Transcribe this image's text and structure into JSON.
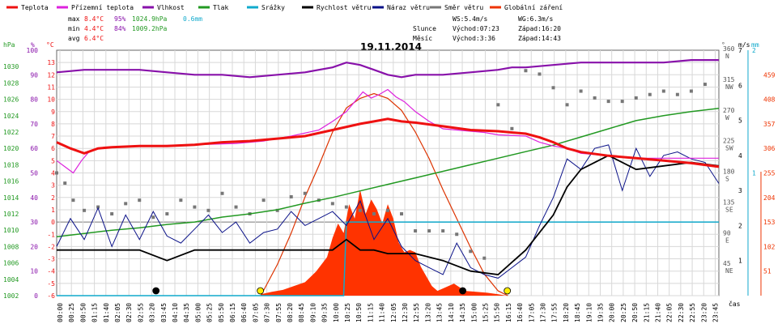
{
  "chart_data": {
    "type": "line",
    "title": "19.11.2014",
    "legend": [
      {
        "name": "Teplota",
        "color": "#ee1111"
      },
      {
        "name": "Přízemní teplota",
        "color": "#dd22dd"
      },
      {
        "name": "Vlhkost",
        "color": "#8811aa"
      },
      {
        "name": "Tlak",
        "color": "#229922"
      },
      {
        "name": "Srážky",
        "color": "#11aacc"
      },
      {
        "name": "Rychlost větru",
        "color": "#000000"
      },
      {
        "name": "Náraz větru",
        "color": "#0a1188"
      },
      {
        "name": "Směr větru",
        "color": "#777777"
      },
      {
        "name": "Globální záření",
        "color": "#ee3300"
      }
    ],
    "stats": {
      "max_label": "max",
      "min_label": "min",
      "avg_label": "avg",
      "max": {
        "temp": "8.4°C",
        "hum": "95%",
        "press": "1024.9hPa",
        "rain": "0.6mm"
      },
      "min": {
        "temp": "4.4°C",
        "hum": "84%",
        "press": "1009.2hPa"
      },
      "avg": {
        "temp": "6.4°C"
      }
    },
    "wind_info": {
      "ws": "WS:5.4m/s",
      "wg": "WG:6.3m/s"
    },
    "sun_info": {
      "slunce": "Slunce",
      "mesic": "Měsíc",
      "sun_rise": "Východ:07:23",
      "sun_set": "Západ:16:20",
      "moon_rise": "Východ:3:36",
      "moon_set": "Západ:14:43"
    },
    "axes": {
      "hpa": {
        "unit": "hPa",
        "range": [
          1002,
          1032
        ],
        "ticks": [
          "1002",
          "1004",
          "1006",
          "1008",
          "1010",
          "1012",
          "1014",
          "1016",
          "1018",
          "1020",
          "1022",
          "1024",
          "1026",
          "1028",
          "1030"
        ]
      },
      "pct": {
        "unit": "%",
        "range": [
          0,
          100
        ],
        "ticks": [
          "0",
          "10",
          "20",
          "30",
          "40",
          "50",
          "60",
          "70",
          "80",
          "90",
          "100"
        ]
      },
      "temp": {
        "unit": "°C",
        "range": [
          -6,
          14
        ],
        "ticks": [
          "-6",
          "-5",
          "-4",
          "-3",
          "-2",
          "-1",
          "0",
          "1",
          "2",
          "3",
          "4",
          "5",
          "6",
          "7",
          "8",
          "9",
          "10",
          "11",
          "12",
          "13"
        ]
      },
      "dir": {
        "unit": "°",
        "ticks": [
          {
            "value": 45,
            "deg": "45",
            "name": "NE"
          },
          {
            "value": 90,
            "deg": "90",
            "name": "E"
          },
          {
            "value": 135,
            "deg": "135",
            "name": "SE"
          },
          {
            "value": 180,
            "deg": "180",
            "name": "S"
          },
          {
            "value": 225,
            "deg": "225",
            "name": "SW"
          },
          {
            "value": 270,
            "deg": "270",
            "name": "W"
          },
          {
            "value": 315,
            "deg": "315",
            "name": "NW"
          },
          {
            "value": 360,
            "deg": "360",
            "name": "N"
          }
        ]
      },
      "ms": {
        "unit": "m/s",
        "range": [
          0,
          7
        ],
        "ticks": [
          "1",
          "2",
          "3",
          "4",
          "5",
          "6",
          "7"
        ]
      },
      "mm": {
        "unit": "mm",
        "range": [
          0,
          2
        ],
        "ticks": [
          "1",
          "2"
        ]
      },
      "wm2": {
        "unit": "W/m²",
        "range": [
          0,
          510
        ],
        "ticks": [
          "51",
          "102",
          "153",
          "204",
          "255",
          "306",
          "357",
          "408",
          "459"
        ]
      },
      "time_label": "čas"
    },
    "x_ticks": [
      "00:00",
      "00:25",
      "00:50",
      "01:15",
      "01:40",
      "02:05",
      "02:30",
      "02:55",
      "03:20",
      "03:45",
      "04:10",
      "04:35",
      "05:00",
      "05:25",
      "05:50",
      "06:15",
      "06:40",
      "07:05",
      "07:30",
      "07:55",
      "08:20",
      "08:45",
      "09:10",
      "09:35",
      "10:00",
      "10:25",
      "10:50",
      "11:15",
      "11:40",
      "12:05",
      "12:30",
      "12:55",
      "13:20",
      "13:45",
      "14:10",
      "14:35",
      "15:00",
      "15:25",
      "15:50",
      "16:15",
      "16:40",
      "17:05",
      "17:30",
      "17:55",
      "18:20",
      "18:45",
      "19:10",
      "19:35",
      "20:00",
      "20:25",
      "20:50",
      "21:15",
      "21:40",
      "22:05",
      "22:30",
      "22:55",
      "23:20",
      "23:45"
    ],
    "series": {
      "temperature": {
        "x": [
          0,
          0.5,
          1,
          1.5,
          2,
          3,
          4,
          5,
          6,
          7,
          8,
          9,
          10,
          11,
          11.5,
          12,
          12.5,
          13,
          14,
          15,
          16,
          17,
          17.5,
          18,
          18.5,
          19,
          20,
          21,
          22,
          23,
          24
        ],
        "y": [
          6.5,
          6.0,
          5.6,
          6.0,
          6.1,
          6.2,
          6.2,
          6.3,
          6.5,
          6.6,
          6.8,
          7.0,
          7.5,
          8.0,
          8.2,
          8.4,
          8.2,
          8.1,
          7.8,
          7.5,
          7.4,
          7.2,
          6.9,
          6.5,
          6.0,
          5.7,
          5.4,
          5.2,
          5.0,
          4.8,
          4.5
        ]
      },
      "ground_temperature": {
        "x": [
          0,
          0.3,
          0.6,
          0.9,
          1.2,
          1.5,
          3,
          5,
          6.5,
          7.5,
          8.5,
          9.5,
          10,
          10.5,
          10.8,
          11.1,
          11.4,
          11.7,
          12,
          12.3,
          12.6,
          13,
          13.5,
          14,
          15,
          15.5,
          16,
          17,
          17.5,
          18,
          18.5,
          19,
          20,
          21,
          22,
          23,
          24
        ],
        "y": [
          5.0,
          4.5,
          4.0,
          5.0,
          5.8,
          6.0,
          6.2,
          6.3,
          6.4,
          6.6,
          7.0,
          7.5,
          8.2,
          9.0,
          9.8,
          10.6,
          10.1,
          10.4,
          10.8,
          10.2,
          9.8,
          9.0,
          8.2,
          7.6,
          7.4,
          7.3,
          7.1,
          7.0,
          6.5,
          6.2,
          6.0,
          5.6,
          5.4,
          5.2,
          5.2,
          5.2,
          5.2
        ]
      },
      "humidity": {
        "x": [
          0,
          1,
          2,
          3,
          4,
          5,
          6,
          7,
          8,
          9,
          10,
          10.5,
          11,
          11.5,
          12,
          12.5,
          13,
          14,
          15,
          16,
          16.5,
          17,
          18,
          19,
          20,
          21,
          22,
          23,
          24
        ],
        "y": [
          91,
          92,
          92,
          92,
          91,
          90,
          90,
          89,
          90,
          91,
          93,
          95,
          94,
          92,
          90,
          89,
          90,
          90,
          91,
          92,
          93,
          93,
          94,
          95,
          95,
          95,
          95,
          96,
          96
        ]
      },
      "pressure": {
        "x": [
          0,
          1,
          2,
          3,
          4,
          5,
          6,
          7,
          8,
          9,
          10,
          11,
          12,
          13,
          14,
          15,
          16,
          17,
          18,
          19,
          20,
          21,
          22,
          23,
          24
        ],
        "y": [
          1009.2,
          1009.6,
          1010.0,
          1010.3,
          1010.7,
          1011.0,
          1011.6,
          1012.0,
          1012.5,
          1013.3,
          1014.0,
          1014.8,
          1015.6,
          1016.4,
          1017.2,
          1018.0,
          1018.8,
          1019.6,
          1020.4,
          1021.4,
          1022.4,
          1023.4,
          1024.0,
          1024.5,
          1024.9
        ]
      },
      "rain": {
        "x": [
          0,
          10.4,
          10.5,
          20.4,
          20.5,
          24
        ],
        "y": [
          0,
          0,
          0.6,
          0.6,
          0.6,
          0.6
        ]
      },
      "wind_speed": {
        "x": [
          0,
          1,
          2,
          3,
          4,
          5,
          6,
          7,
          8,
          9,
          10,
          10.5,
          11,
          11.5,
          12,
          13,
          14,
          15,
          16,
          17,
          17.5,
          18,
          18.5,
          19,
          20,
          21,
          22,
          23,
          24
        ],
        "y": [
          1.3,
          1.3,
          1.3,
          1.3,
          1.0,
          1.3,
          1.3,
          1.3,
          1.3,
          1.3,
          1.3,
          1.6,
          1.3,
          1.3,
          1.2,
          1.2,
          1.0,
          0.7,
          0.6,
          1.3,
          1.8,
          2.3,
          3.1,
          3.6,
          4.0,
          3.6,
          3.7,
          3.8,
          3.7
        ]
      },
      "wind_gust": {
        "x": [
          0,
          0.5,
          1,
          1.5,
          2,
          2.5,
          3,
          3.5,
          4,
          4.5,
          5,
          5.5,
          6,
          6.5,
          7,
          7.5,
          8,
          8.5,
          9,
          9.5,
          10,
          10.5,
          11,
          11.5,
          12,
          12.5,
          13,
          13.5,
          14,
          14.5,
          15,
          15.5,
          16,
          16.5,
          17,
          17.5,
          18,
          18.5,
          19,
          19.5,
          20,
          20.5,
          21,
          21.5,
          22,
          22.5,
          23,
          23.5,
          24
        ],
        "y": [
          1.4,
          2.2,
          1.6,
          2.5,
          1.4,
          2.3,
          1.6,
          2.4,
          1.7,
          1.5,
          1.9,
          2.3,
          1.8,
          2.1,
          1.5,
          1.8,
          1.9,
          2.4,
          2.0,
          2.2,
          2.4,
          2.0,
          2.7,
          1.6,
          2.2,
          1.4,
          1.0,
          0.8,
          0.6,
          1.5,
          0.8,
          0.6,
          0.5,
          0.8,
          1.1,
          2.0,
          2.8,
          3.9,
          3.6,
          4.2,
          4.3,
          3.0,
          4.2,
          3.4,
          4.0,
          4.1,
          3.9,
          3.8,
          3.2
        ]
      },
      "wind_direction": {
        "x": [
          0,
          0.3,
          0.6,
          1,
          1.5,
          2,
          2.5,
          3,
          3.5,
          4,
          4.5,
          5,
          5.5,
          6,
          6.5,
          7,
          7.5,
          8,
          8.5,
          9,
          9.5,
          10,
          10.5,
          11,
          11.5,
          12,
          12.5,
          13,
          13.5,
          14,
          14.5,
          15,
          15.5,
          16,
          16.5,
          17,
          17.5,
          18,
          18.5,
          19,
          19.5,
          20,
          20.5,
          21,
          21.5,
          22,
          22.5,
          23,
          23.5
        ],
        "y": [
          180,
          165,
          140,
          125,
          130,
          120,
          135,
          140,
          115,
          120,
          140,
          130,
          125,
          150,
          130,
          120,
          140,
          125,
          145,
          150,
          140,
          135,
          130,
          125,
          120,
          125,
          120,
          95,
          95,
          95,
          90,
          65,
          55,
          280,
          245,
          330,
          325,
          305,
          280,
          300,
          290,
          285,
          285,
          290,
          295,
          300,
          295,
          300,
          310
        ]
      },
      "solar_radiation": {
        "x": [
          7.4,
          7.8,
          8.2,
          8.6,
          9.0,
          9.4,
          9.8,
          10.0,
          10.2,
          10.4,
          10.6,
          10.8,
          11.0,
          11.2,
          11.4,
          11.6,
          11.8,
          12.0,
          12.2,
          12.4,
          12.6,
          12.8,
          13.0,
          13.2,
          13.4,
          13.6,
          13.8,
          14.0,
          14.4,
          14.8,
          15.2,
          15.6,
          16.0,
          16.3
        ],
        "y": [
          3,
          8,
          12,
          20,
          28,
          50,
          80,
          120,
          150,
          130,
          190,
          160,
          220,
          170,
          200,
          180,
          150,
          190,
          160,
          110,
          90,
          95,
          90,
          60,
          40,
          20,
          10,
          15,
          25,
          10,
          8,
          6,
          3,
          0
        ]
      },
      "solar_clear": {
        "x": [
          7.4,
          8.0,
          8.5,
          9.0,
          9.5,
          10.0,
          10.5,
          11.0,
          11.5,
          12.0,
          12.5,
          13.0,
          13.5,
          14.0,
          14.5,
          15.0,
          15.5,
          16.0,
          16.35
        ],
        "y": [
          0,
          65,
          130,
          205,
          270,
          340,
          390,
          410,
          420,
          410,
          385,
          340,
          285,
          220,
          160,
          100,
          45,
          10,
          0
        ]
      }
    }
  }
}
